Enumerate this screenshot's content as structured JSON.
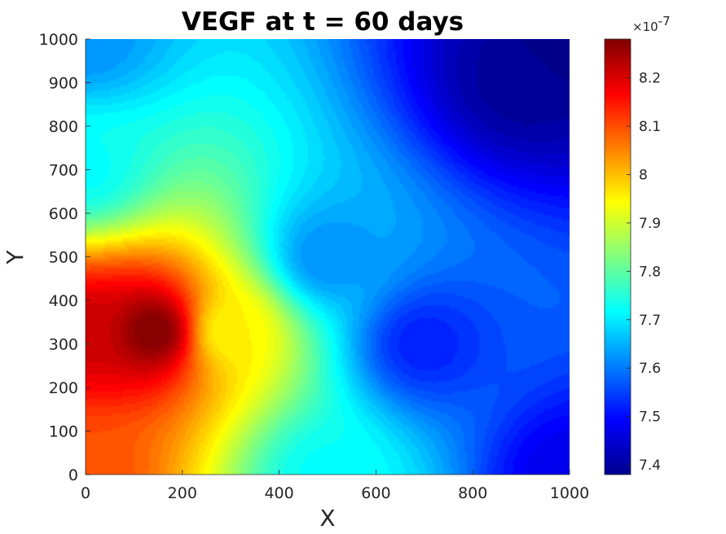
{
  "chart_data": {
    "type": "heatmap",
    "title": "VEGF at t = 60 days",
    "xlabel": "X",
    "ylabel": "Y",
    "xlim": [
      0,
      1000
    ],
    "ylim": [
      0,
      1000
    ],
    "xticks": [
      0,
      200,
      400,
      600,
      800,
      1000
    ],
    "yticks": [
      0,
      100,
      200,
      300,
      400,
      500,
      600,
      700,
      800,
      900,
      1000
    ],
    "colormap": "jet",
    "grid": false,
    "plot_style": "filled contour",
    "peak": {
      "x": 140,
      "y": 330,
      "value": 8.28e-07
    },
    "corner_values": [
      {
        "x": 0,
        "y": 0,
        "value": 8.1e-07
      },
      {
        "x": 0,
        "y": 1000,
        "value": 7.62e-07
      },
      {
        "x": 1000,
        "y": 0,
        "value": 7.47e-07
      },
      {
        "x": 1000,
        "y": 1000,
        "value": 7.38e-07
      }
    ],
    "sample_values": [
      {
        "x": 0,
        "y": 330,
        "value": 8.22e-07
      },
      {
        "x": 300,
        "y": 330,
        "value": 7.95e-07
      },
      {
        "x": 500,
        "y": 0,
        "value": 7.72e-07
      },
      {
        "x": 500,
        "y": 500,
        "value": 7.62e-07
      },
      {
        "x": 0,
        "y": 700,
        "value": 7.72e-07
      },
      {
        "x": 700,
        "y": 300,
        "value": 7.52e-07
      },
      {
        "x": 900,
        "y": 900,
        "value": 7.4e-07
      }
    ],
    "colorbar": {
      "min": 7.38e-07,
      "max": 8.28e-07,
      "ticks": [
        7.4,
        7.5,
        7.6,
        7.7,
        7.8,
        7.9,
        8.0,
        8.1,
        8.2
      ],
      "tick_labels": [
        "7.4",
        "7.5",
        "7.6",
        "7.7",
        "7.8",
        "7.9",
        "8",
        "8.1",
        "8.2"
      ],
      "multiplier_base": "×10",
      "multiplier_exponent": "-7"
    }
  }
}
